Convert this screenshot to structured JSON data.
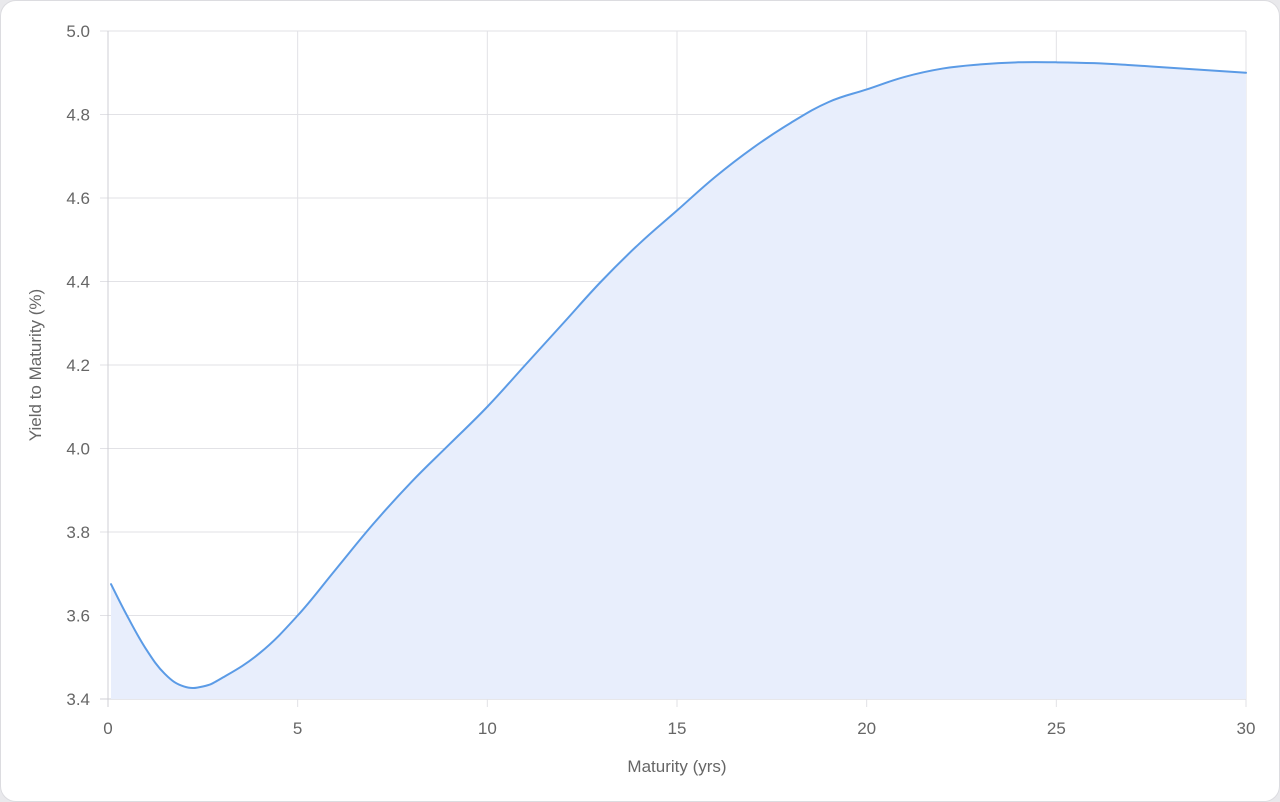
{
  "chart_data": {
    "type": "area",
    "title": "",
    "xlabel": "Maturity (yrs)",
    "ylabel": "Yield to Maturity (%)",
    "xlim": [
      0,
      30
    ],
    "ylim": [
      3.4,
      5.0
    ],
    "x_ticks": [
      "0",
      "5",
      "10",
      "15",
      "20",
      "25",
      "30"
    ],
    "y_ticks": [
      "3.4",
      "3.6",
      "3.8",
      "4.0",
      "4.2",
      "4.4",
      "4.6",
      "4.8",
      "5.0"
    ],
    "grid": true,
    "legend": "none",
    "colors": {
      "line": "#5b9be6",
      "fill": "#e8eefc",
      "grid": "#e2e2e6",
      "axis": "#cfcfd4",
      "text": "#666666"
    },
    "series": [
      {
        "x": [
          0.08,
          0.5,
          1,
          1.5,
          2,
          2.5,
          3,
          4,
          5,
          6,
          7,
          8,
          9,
          10,
          11,
          12,
          13,
          14,
          15,
          16,
          17,
          18,
          19,
          20,
          21,
          22,
          23,
          24,
          25,
          26,
          27,
          28,
          29,
          30
        ],
        "values": [
          3.675,
          3.6,
          3.52,
          3.46,
          3.43,
          3.43,
          3.45,
          3.51,
          3.6,
          3.71,
          3.82,
          3.92,
          4.01,
          4.1,
          4.2,
          4.3,
          4.4,
          4.49,
          4.57,
          4.65,
          4.72,
          4.78,
          4.83,
          4.86,
          4.89,
          4.91,
          4.92,
          4.925,
          4.925,
          4.923,
          4.918,
          4.912,
          4.906,
          4.9
        ]
      }
    ]
  }
}
